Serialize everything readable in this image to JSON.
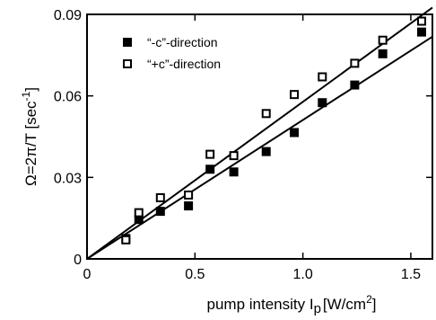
{
  "chart_data": {
    "type": "scatter",
    "xlabel": "pump intensity I",
    "xlabel_sub": "p",
    "xlabel_units": "[W/cm",
    "xlabel_sup": "2",
    "xlabel_close": "]",
    "ylabel": "Ω=2π/T  [sec",
    "ylabel_sup": "-1",
    "ylabel_close": "]",
    "xlim": [
      0,
      1.6
    ],
    "ylim": [
      0,
      0.09
    ],
    "xticks": [
      0,
      0.5,
      1.0,
      1.5
    ],
    "xtick_labels": [
      "0",
      "0.5",
      "1.0",
      "1.5"
    ],
    "yticks": [
      0,
      0.03,
      0.06,
      0.09
    ],
    "ytick_labels": [
      "0",
      "0.03",
      "0.06",
      "0.09"
    ],
    "legend_position": "top-left",
    "series": [
      {
        "name": "“-c”-direction",
        "marker": "filled-square",
        "x": [
          0.18,
          0.24,
          0.34,
          0.47,
          0.57,
          0.68,
          0.83,
          0.96,
          1.09,
          1.24,
          1.37,
          1.55
        ],
        "y": [
          0.0075,
          0.0145,
          0.0175,
          0.0195,
          0.033,
          0.032,
          0.0395,
          0.0465,
          0.0575,
          0.064,
          0.0755,
          0.0835
        ],
        "fit": {
          "x": [
            0,
            1.6
          ],
          "y": [
            0,
            0.0818
          ]
        }
      },
      {
        "name": "“+c”-direction",
        "marker": "open-square",
        "x": [
          0.18,
          0.24,
          0.34,
          0.47,
          0.57,
          0.68,
          0.83,
          0.96,
          1.09,
          1.24,
          1.37,
          1.55
        ],
        "y": [
          0.007,
          0.017,
          0.0225,
          0.0235,
          0.0385,
          0.038,
          0.0535,
          0.0605,
          0.067,
          0.072,
          0.0805,
          0.0875
        ],
        "fit": {
          "x": [
            0,
            1.6
          ],
          "y": [
            0,
            0.0925
          ]
        }
      }
    ]
  }
}
